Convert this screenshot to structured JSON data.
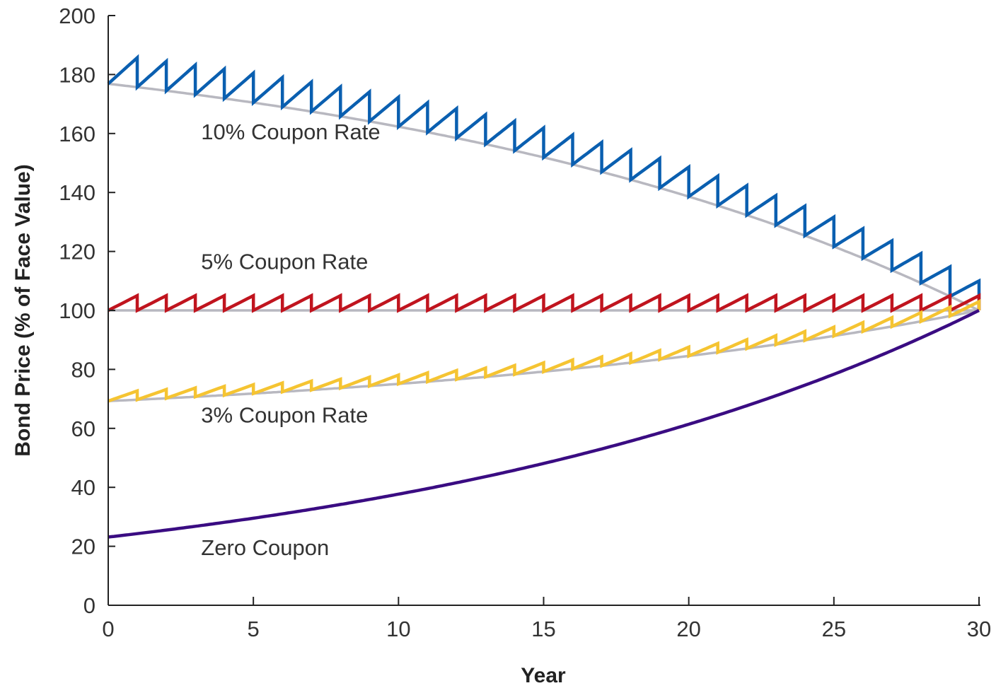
{
  "chart_data": {
    "type": "line",
    "title": "",
    "xlabel": "Year",
    "ylabel": "Bond Price (% of Face Value)",
    "xlim": [
      0,
      30
    ],
    "ylim": [
      0,
      200
    ],
    "x_ticks": [
      "0",
      "5",
      "10",
      "15",
      "20",
      "25",
      "30"
    ],
    "y_ticks": [
      "0",
      "20",
      "40",
      "60",
      "80",
      "100",
      "120",
      "140",
      "160",
      "180",
      "200"
    ],
    "grid": false,
    "legend": "none",
    "years_to_maturity": 30,
    "yield_rate": 0.05,
    "series": [
      {
        "name": "10% Coupon Rate",
        "coupon_rate": 0.1,
        "color": "#0a5fb0",
        "clean_price_color": "#b8b8c0",
        "label_position": {
          "x": 3.2,
          "y": 158
        }
      },
      {
        "name": "5% Coupon Rate",
        "coupon_rate": 0.05,
        "color": "#c0141e",
        "clean_price_color": "#b8b8c0",
        "label_position": {
          "x": 3.2,
          "y": 114
        }
      },
      {
        "name": "3% Coupon Rate",
        "coupon_rate": 0.03,
        "color": "#f5c432",
        "clean_price_color": "#b8b8c0",
        "label_position": {
          "x": 3.2,
          "y": 62
        }
      },
      {
        "name": "Zero Coupon",
        "coupon_rate": 0.0,
        "color": "#3a0c82",
        "clean_price_color": null,
        "label_position": {
          "x": 3.2,
          "y": 17
        }
      }
    ],
    "sample_values": {
      "10% Coupon Rate": {
        "x": [
          0,
          10,
          20,
          29,
          30
        ],
        "clean_price": [
          176.9,
          162.3,
          138.6,
          104.8,
          100
        ],
        "dirty_price": [
          176.9,
          172.3,
          148.6,
          114.8,
          110
        ]
      },
      "5% Coupon Rate": {
        "x": [
          0,
          10,
          20,
          30
        ],
        "clean_price": [
          100,
          100,
          100,
          100
        ],
        "dirty_price": [
          100,
          105,
          105,
          105
        ]
      },
      "3% Coupon Rate": {
        "x": [
          0,
          10,
          20,
          30
        ],
        "clean_price": [
          69.3,
          75.1,
          84.6,
          100
        ],
        "dirty_price": [
          69.3,
          78.1,
          87.6,
          103
        ]
      },
      "Zero Coupon": {
        "x": [
          0,
          10,
          20,
          30
        ],
        "price": [
          23.1,
          37.7,
          61.4,
          100
        ]
      }
    }
  }
}
